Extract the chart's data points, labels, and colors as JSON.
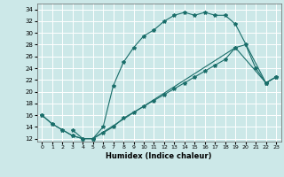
{
  "title": "",
  "xlabel": "Humidex (Indice chaleur)",
  "bg_color": "#cce8e8",
  "line_color": "#1a6e6a",
  "grid_color": "#ffffff",
  "xlim": [
    -0.5,
    23.5
  ],
  "ylim": [
    11.5,
    35
  ],
  "xticks": [
    0,
    1,
    2,
    3,
    4,
    5,
    6,
    7,
    8,
    9,
    10,
    11,
    12,
    13,
    14,
    15,
    16,
    17,
    18,
    19,
    20,
    21,
    22,
    23
  ],
  "yticks": [
    12,
    14,
    16,
    18,
    20,
    22,
    24,
    26,
    28,
    30,
    32,
    34
  ],
  "line1_x": [
    0,
    1,
    2,
    3,
    4,
    5,
    6,
    7,
    8,
    9,
    10,
    11,
    12,
    13,
    14,
    15,
    16,
    17,
    18,
    19,
    22,
    23
  ],
  "line1_y": [
    16,
    14.5,
    13.5,
    12.5,
    12,
    12,
    14,
    21,
    25,
    27.5,
    29.5,
    30.5,
    32,
    33,
    33.5,
    33,
    33.5,
    33,
    33,
    31.5,
    21.5,
    22.5
  ],
  "line2_x": [
    0,
    1,
    2,
    3,
    4,
    5,
    6,
    7,
    8,
    9,
    10,
    11,
    12,
    13,
    14,
    15,
    16,
    17,
    18,
    19,
    22,
    23
  ],
  "line2_y": [
    16,
    14.5,
    13.5,
    12.5,
    12,
    12,
    13.0,
    14.0,
    15.5,
    16.5,
    17.5,
    18.5,
    19.5,
    20.5,
    21.5,
    22.5,
    23.5,
    24.5,
    25.5,
    27.5,
    21.5,
    22.5
  ],
  "line3_x": [
    3,
    4,
    5,
    19,
    20,
    21,
    22,
    23
  ],
  "line3_y": [
    13.5,
    12,
    12,
    27.5,
    28,
    24,
    21.5,
    22.5
  ]
}
